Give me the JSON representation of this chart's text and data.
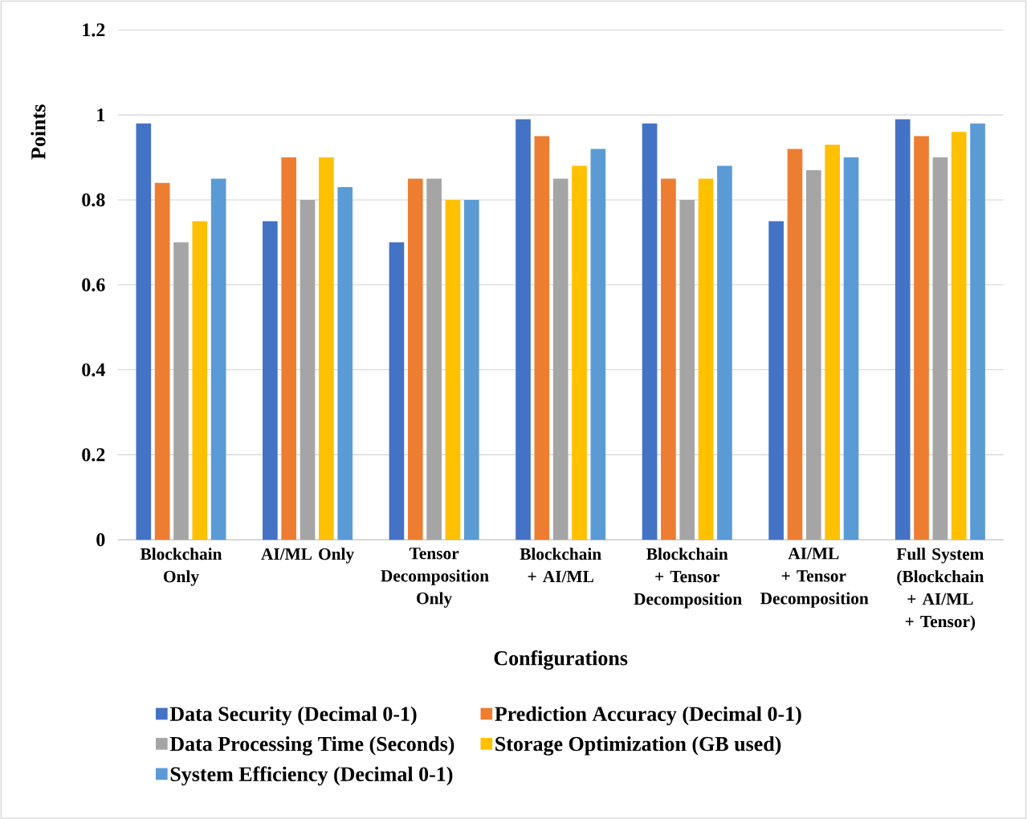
{
  "chart_data": {
    "type": "bar",
    "xlabel": "Configurations",
    "ylabel": "Points",
    "categories": [
      "Blockchain Only",
      "AI/ML Only",
      "Tensor Decomposition Only",
      "Blockchain + AI/ML",
      "Blockchain + Tensor Decomposition",
      "AI/ML + Tensor Decomposition",
      "Full System (Blockchain + AI/ML + Tensor)"
    ],
    "series": [
      {
        "name": "Data Security (Decimal 0-1)",
        "color": "#4472c4",
        "values": [
          0.98,
          0.75,
          0.7,
          0.99,
          0.98,
          0.75,
          0.99
        ]
      },
      {
        "name": "Prediction Accuracy (Decimal 0-1)",
        "color": "#ed7d31",
        "values": [
          0.84,
          0.9,
          0.85,
          0.95,
          0.85,
          0.92,
          0.95
        ]
      },
      {
        "name": "Data Processing Time (Seconds)",
        "color": "#a5a5a5",
        "values": [
          0.7,
          0.8,
          0.85,
          0.85,
          0.8,
          0.87,
          0.9
        ]
      },
      {
        "name": "Storage Optimization (GB used)",
        "color": "#ffc000",
        "values": [
          0.75,
          0.9,
          0.8,
          0.88,
          0.85,
          0.93,
          0.96
        ]
      },
      {
        "name": "System Efficiency (Decimal 0-1)",
        "color": "#5b9bd5",
        "values": [
          0.85,
          0.83,
          0.8,
          0.92,
          0.88,
          0.9,
          0.98
        ]
      }
    ],
    "ylim": [
      0,
      1.2
    ],
    "yticks": [
      0,
      0.2,
      0.4,
      0.6,
      0.8,
      1,
      1.2
    ],
    "grid": "y",
    "legend": "bottom"
  }
}
